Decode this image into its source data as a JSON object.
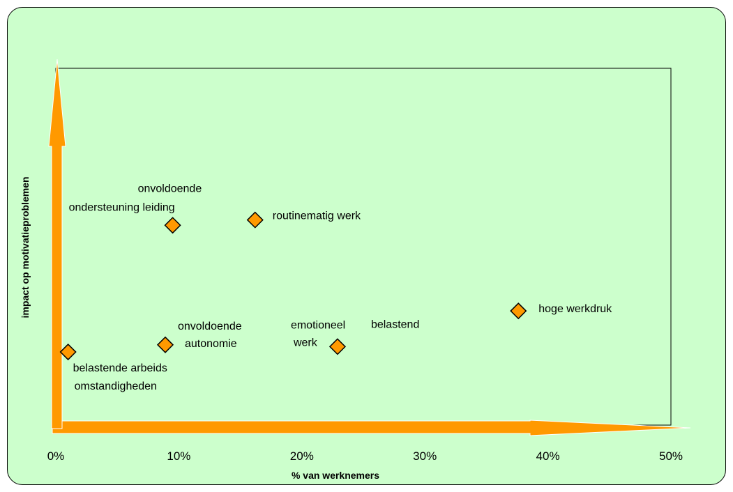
{
  "chart_data": {
    "type": "scatter",
    "title": "",
    "xlabel": "% van werknemers",
    "ylabel": "impact op motivatieproblemen",
    "xlim": [
      0,
      50
    ],
    "ylim": [
      0,
      100
    ],
    "x_ticks": [
      {
        "value": 0,
        "label": "0%"
      },
      {
        "value": 10,
        "label": "10%"
      },
      {
        "value": 20,
        "label": "20%"
      },
      {
        "value": 30,
        "label": "30%"
      },
      {
        "value": 40,
        "label": "40%"
      },
      {
        "value": 50,
        "label": "50%"
      }
    ],
    "grid": false,
    "legend": "none",
    "marker_color": "#ff9900",
    "arrow_color": "#ff9900",
    "background_color": "#ccffcc",
    "points": [
      {
        "x": 1.0,
        "y": 20.5,
        "label": [
          "belastende arbeids",
          "omstandigheden"
        ]
      },
      {
        "x": 8.9,
        "y": 22.5,
        "label": [
          "onvoldoende",
          "autonomie"
        ]
      },
      {
        "x": 9.5,
        "y": 56.0,
        "label": [
          "onvoldoende",
          "ondersteuning leiding"
        ]
      },
      {
        "x": 16.2,
        "y": 57.5,
        "label": [
          "routinematig werk"
        ]
      },
      {
        "x": 22.9,
        "y": 22.0,
        "label": [
          "emotioneel",
          "werk",
          "belastend"
        ]
      },
      {
        "x": 37.6,
        "y": 32.0,
        "label": [
          "hoge werkdruk"
        ]
      }
    ]
  }
}
